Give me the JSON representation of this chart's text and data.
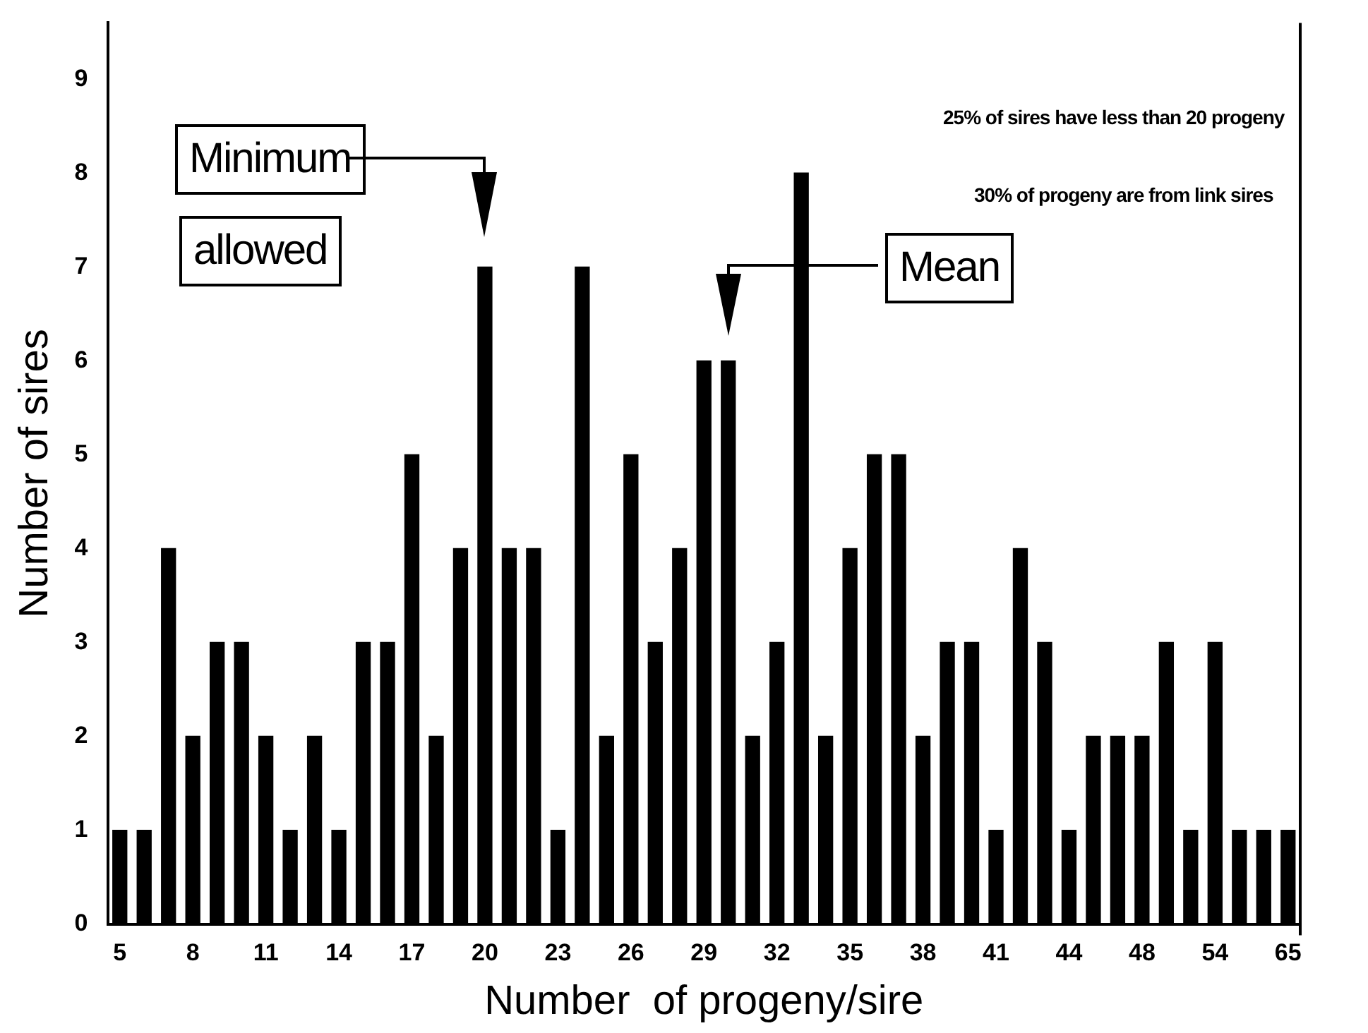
{
  "chart_data": {
    "type": "bar",
    "xlabel": "Number  of progeny/sire",
    "ylabel": "Number of sires",
    "categories": [
      "5",
      null,
      null,
      "8",
      null,
      null,
      "11",
      null,
      null,
      "14",
      null,
      null,
      "17",
      null,
      null,
      "20",
      null,
      null,
      "23",
      null,
      null,
      "26",
      null,
      null,
      "29",
      null,
      null,
      "32",
      null,
      null,
      "35",
      null,
      null,
      "38",
      null,
      null,
      "41",
      null,
      null,
      "44",
      null,
      null,
      "48",
      null,
      null,
      "54",
      null,
      null,
      "65"
    ],
    "values": [
      1,
      1,
      4,
      2,
      3,
      3,
      2,
      1,
      2,
      1,
      3,
      3,
      5,
      2,
      4,
      7,
      4,
      4,
      1,
      7,
      2,
      5,
      3,
      4,
      6,
      6,
      2,
      3,
      8,
      2,
      4,
      5,
      5,
      2,
      3,
      3,
      1,
      4,
      3,
      1,
      2,
      2,
      2,
      3,
      1,
      3,
      1,
      1,
      1
    ],
    "color": "#000000",
    "ylim": [
      0,
      9.6
    ],
    "yticks": [
      0,
      1,
      2,
      3,
      4,
      5,
      6,
      7,
      8,
      9
    ],
    "grid": false,
    "legend": false,
    "annotations": [
      "Minimum",
      "allowed",
      "Mean",
      "25% of sires have less than 20 progeny",
      "30% of progeny are from link sires"
    ]
  }
}
